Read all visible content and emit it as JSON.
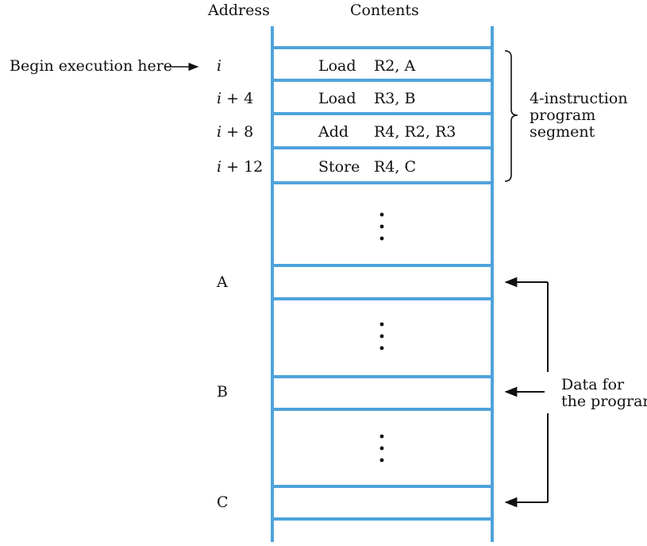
{
  "headers": {
    "address": "Address",
    "contents": "Contents"
  },
  "begin_label": "Begin execution here",
  "instructions": [
    {
      "addr_var": "i",
      "addr_suffix": "",
      "op": "Load",
      "args": "R2, A"
    },
    {
      "addr_var": "i",
      "addr_suffix": " + 4",
      "op": "Load",
      "args": "R3, B"
    },
    {
      "addr_var": "i",
      "addr_suffix": " + 8",
      "op": "Add",
      "args": "R4, R2, R3"
    },
    {
      "addr_var": "i",
      "addr_suffix": " + 12",
      "op": "Store",
      "args": "R4, C"
    }
  ],
  "segment_label": [
    "4-instruction",
    "program",
    "segment"
  ],
  "data_addresses": [
    "A",
    "B",
    "C"
  ],
  "data_label": [
    "Data for",
    "the program"
  ],
  "ellipsis": "⋮",
  "colors": {
    "memory_lines": "#4fa3dc",
    "text": "#111111",
    "arrows": "#111111"
  }
}
